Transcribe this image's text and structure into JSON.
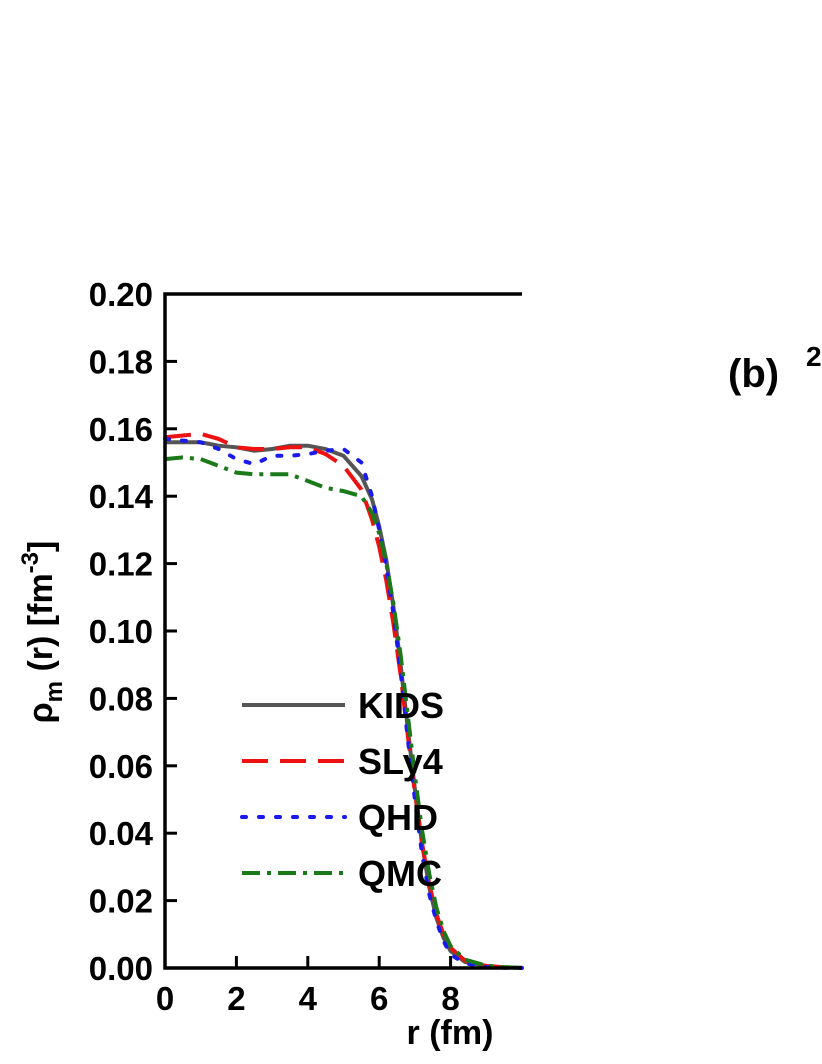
{
  "chart_data": {
    "type": "line",
    "xlabel": "r (fm)",
    "ylabel": [
      "ρ",
      "m",
      " (r) [fm",
      "-3",
      "]"
    ],
    "annotation": "(b)",
    "annotation_sup": "2",
    "x": [
      0,
      0.5,
      1,
      1.5,
      2,
      2.5,
      3,
      3.5,
      4,
      4.5,
      5,
      5.5,
      5.8,
      6,
      6.2,
      6.4,
      6.6,
      6.8,
      7,
      7.2,
      7.4,
      7.6,
      7.8,
      8,
      8.4,
      9,
      9.5,
      10
    ],
    "series": [
      {
        "name": "KIDS",
        "color": "#555555",
        "dash": "solid",
        "values": [
          0.156,
          0.156,
          0.156,
          0.155,
          0.1545,
          0.1535,
          0.154,
          0.155,
          0.155,
          0.154,
          0.152,
          0.146,
          0.139,
          0.131,
          0.121,
          0.107,
          0.09,
          0.071,
          0.053,
          0.037,
          0.024,
          0.015,
          0.009,
          0.005,
          0.0018,
          0.0005,
          0.0002,
          0.0001
        ]
      },
      {
        "name": "SLy4",
        "color": "#ee1111",
        "dash": "dashed",
        "values": [
          0.1575,
          0.158,
          0.1585,
          0.157,
          0.1545,
          0.154,
          0.154,
          0.1545,
          0.1545,
          0.1525,
          0.149,
          0.142,
          0.133,
          0.125,
          0.115,
          0.102,
          0.087,
          0.069,
          0.052,
          0.037,
          0.025,
          0.016,
          0.01,
          0.006,
          0.0022,
          0.0006,
          0.0002,
          0.0001
        ]
      },
      {
        "name": "QHD",
        "color": "#1a1aee",
        "dash": "dotted",
        "values": [
          0.157,
          0.1565,
          0.156,
          0.154,
          0.151,
          0.1495,
          0.152,
          0.152,
          0.1525,
          0.1535,
          0.154,
          0.15,
          0.14,
          0.13,
          0.119,
          0.105,
          0.088,
          0.068,
          0.05,
          0.034,
          0.022,
          0.014,
          0.008,
          0.004,
          0.0014,
          0.0003,
          0.0001,
          0
        ]
      },
      {
        "name": "QMC",
        "color": "#1a7a1a",
        "dash": "dashdot",
        "values": [
          0.151,
          0.1515,
          0.151,
          0.149,
          0.147,
          0.1465,
          0.1465,
          0.1465,
          0.1445,
          0.1425,
          0.1415,
          0.14,
          0.135,
          0.129,
          0.12,
          0.108,
          0.093,
          0.075,
          0.057,
          0.041,
          0.028,
          0.018,
          0.011,
          0.0065,
          0.0025,
          0.0007,
          0.0002,
          0.0001
        ]
      }
    ],
    "xlim": [
      0,
      10
    ],
    "xticks": [
      0,
      2,
      4,
      6,
      8
    ],
    "ylim": [
      0,
      0.2
    ],
    "yticks": [
      {
        "value": 0,
        "label": "0.00"
      },
      {
        "value": 0.02,
        "label": "0.02"
      },
      {
        "value": 0.04,
        "label": "0.04"
      },
      {
        "value": 0.06,
        "label": "0.06"
      },
      {
        "value": 0.08,
        "label": "0.08"
      },
      {
        "value": 0.1,
        "label": "0.10"
      },
      {
        "value": 0.12,
        "label": "0.12"
      },
      {
        "value": 0.14,
        "label": "0.14"
      },
      {
        "value": 0.16,
        "label": "0.16"
      },
      {
        "value": 0.18,
        "label": "0.18"
      },
      {
        "value": 0.2,
        "label": "0.20"
      }
    ],
    "grid": false,
    "legend": "left"
  }
}
